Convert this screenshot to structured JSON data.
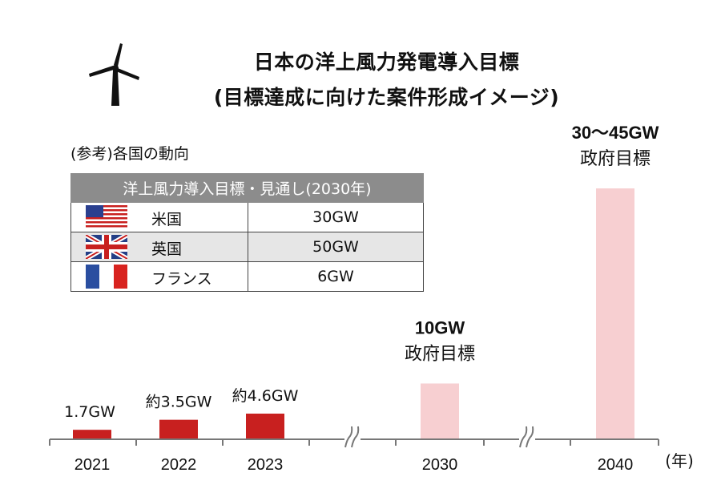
{
  "title": {
    "line1": "日本の洋上風力発電導入目標",
    "line2": "(目標達成に向けた案件形成イメージ)"
  },
  "reference": {
    "label": "(参考)各国の動向",
    "table_header": "洋上風力導入目標・見通し(2030年)",
    "rows": [
      {
        "country": "米国",
        "value": "30GW",
        "flag": "us-flag-icon"
      },
      {
        "country": "英国",
        "value": "50GW",
        "flag": "uk-flag-icon"
      },
      {
        "country": "フランス",
        "value": "6GW",
        "flag": "france-flag-icon"
      }
    ]
  },
  "chart_data": {
    "type": "bar",
    "categories": [
      "2021",
      "2022",
      "2023",
      "2030",
      "2040"
    ],
    "values": [
      1.7,
      3.5,
      4.6,
      10,
      45
    ],
    "value_labels": [
      "1.7GW",
      "約3.5GW",
      "約4.6GW",
      "10GW",
      "30～45GW"
    ],
    "target_notes": [
      "",
      "",
      "",
      "政府目標",
      "政府目標"
    ],
    "xunit": "(年)",
    "axis_breaks": [
      "2023-2030",
      "2030-2040"
    ],
    "colors": {
      "actual": "#c8201f",
      "target": "#f7cfd1"
    }
  }
}
